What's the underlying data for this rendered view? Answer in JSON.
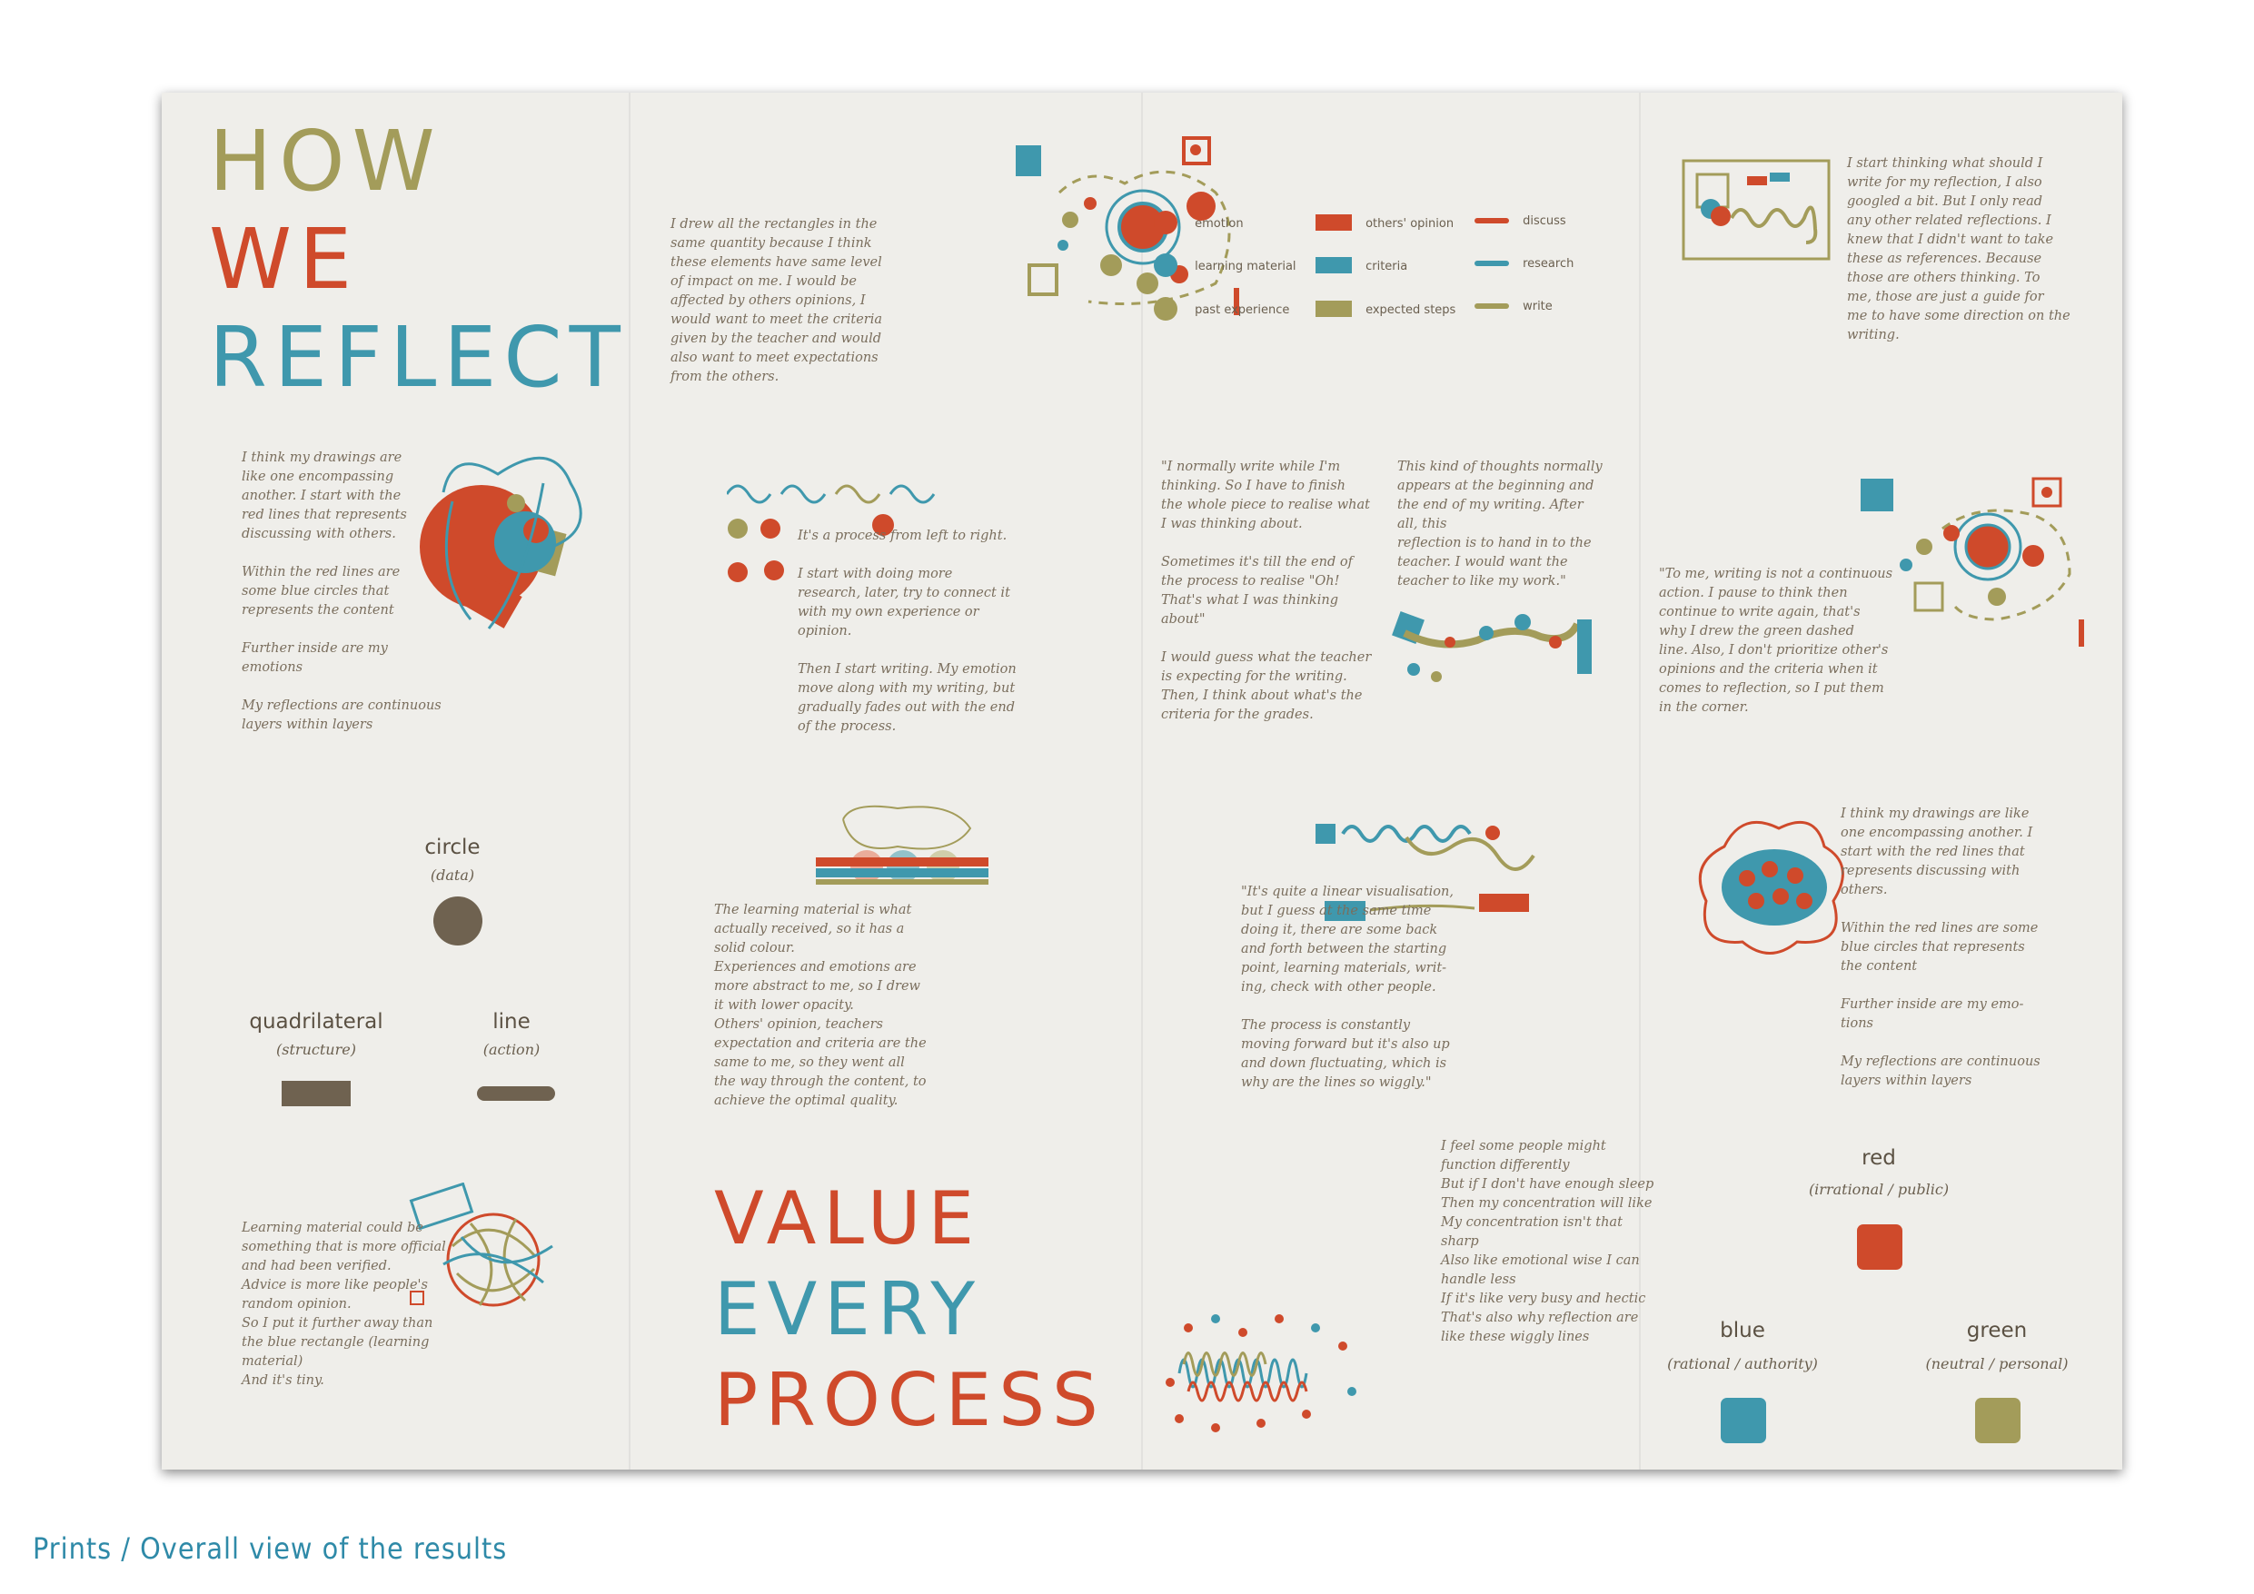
{
  "title_block": {
    "line1": "HOW",
    "line2": "WE",
    "line3": "REFLECT"
  },
  "value_block": {
    "line1": "VALUE",
    "line2": "EVERY",
    "line3": "PROCESS"
  },
  "legend": {
    "emotion": "emotion",
    "learning_material": "learning material",
    "past_experience": "past experience",
    "others_opinion": "others' opinion",
    "criteria": "criteria",
    "expected_steps": "expected steps",
    "discuss": "discuss",
    "research": "research",
    "write": "write"
  },
  "shape_key": {
    "circle": "circle",
    "circle_sub": "(data)",
    "quad": "quadrilateral",
    "quad_sub": "(structure)",
    "line": "line",
    "line_sub": "(action)"
  },
  "color_key": {
    "red": "red",
    "red_sub": "(irrational / public)",
    "blue": "blue",
    "blue_sub": "(rational / authority)",
    "green": "green",
    "green_sub": "(neutral / personal)"
  },
  "colors": {
    "red": "#cf4a2b",
    "blue": "#3f98ad",
    "olive": "#a39c5a",
    "brown": "#6f6250"
  },
  "texts": {
    "t_rect": "I drew all the rectangles in the\nsame quantity because I think\nthese elements have same level\nof impact on me. I would be\naffected by others opinions, I\nwould want to meet the criteria\ngiven by the teacher and would\nalso want to meet expectations\nfrom the others.",
    "t_layers": "I think my drawings are\nlike one encompassing\nanother. I start with the\nred lines that represents\ndiscussing with others.\n\nWithin the red lines are\nsome blue circles that\nrepresents the content\n\nFurther inside are my\nemotions\n\nMy reflections are continuous\nlayers within layers",
    "t_process": "It's a process from left to right.\n\nI start with doing more\nresearch, later, try to connect it\nwith my own experience or\nopinion.\n\nThen I start writing. My emotion\nmove along with my writing, but\ngradually fades out with the end\nof the process.",
    "t_learning": "The learning material is what\nactually received, so it has a\nsolid colour.\nExperiences and emotions are\nmore abstract to me, so I drew\nit with lower opacity.\nOthers' opinion, teachers\nexpectation and criteria are the\nsame to me, so they went all\nthe way through the content, to\nachieve the optimal quality.",
    "t_material": "Learning material could be\nsomething that is more official\nand had been verified.\nAdvice is more like people's\nrandom opinion.\nSo I put it further away than\nthe blue rectangle (learning\nmaterial)\nAnd it's tiny.",
    "t_normally": "\"I normally write while I'm\nthinking. So I have to finish\nthe whole piece to realise what\nI was thinking about.\n\nSometimes it's till the end of\nthe process to realise \"Oh!\nThat's what I was thinking\nabout\"\n\nI would guess what the teacher\nis expecting for the writing.\nThen, I think about what's the\ncriteria for the grades.",
    "t_thoughts": "This kind of thoughts normally\nappears at the beginning and\nthe end of my writing. After\nall, this\nreflection is to hand in to the\nteacher. I would want the\nteacher to like my work.\"",
    "t_linear": "\"It's quite a linear visualisation,\nbut I guess at the same time\ndoing it, there are some back\nand forth between the starting\npoint, learning materials, writ-\ning, check with other people.\n\nThe process is constantly\nmoving forward but it's also up\nand down fluctuating, which is\nwhy are the lines so wiggly.\"",
    "t_sleep": "I feel some people might\nfunction differently\nBut if I don't have enough sleep\nThen my concentration will like\nMy concentration isn't that\nsharp\nAlso like emotional wise I can\nhandle less\nIf it's like very busy and hectic\nThat's also why reflection are\nlike these wiggly lines",
    "t_start": "I start thinking what should I\nwrite for my reflection, I also\ngoogled a bit. But I only read\nany other related reflections. I\nknew that I didn't want to take\nthese as references. Because\nthose are others thinking. To\nme, those are just a guide for\nme to have some direction on the\nwriting.",
    "t_continuous": "\"To me, writing is not a continuous\naction. I pause to think then\ncontinue to write again, that's\nwhy I drew the green dashed\nline. Also, I don't prioritize other's\nopinions and the criteria when it\ncomes to reflection, so I put them\nin the corner.",
    "t_layers2": "I think my drawings are like\none encompassing another. I\nstart with the red lines that\nrepresents discussing with\nothers.\n\nWithin the red lines are some\nblue circles that represents\nthe content\n\nFurther inside are my emo-\ntions\n\nMy reflections are continuous\nlayers within layers"
  },
  "caption": "Prints / Overall view of the results"
}
